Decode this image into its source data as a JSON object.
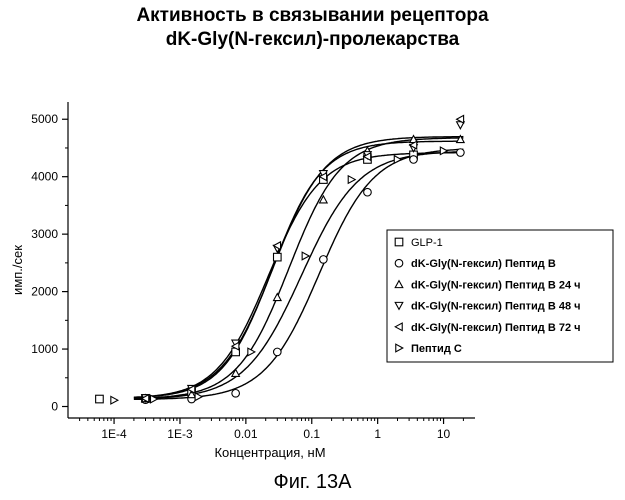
{
  "chart_data": {
    "type": "scatter",
    "title_lines": [
      "Активность в связывании рецептора",
      "dK-Gly(N-гексил)-пролекарства"
    ],
    "caption": "Фиг. 13А",
    "xlabel": "Концентрация, нМ",
    "ylabel": "имп./сек",
    "x_scale": "log",
    "xlim": [
      2e-05,
      30
    ],
    "ylim": [
      -200,
      5300
    ],
    "x_ticks": [
      {
        "value": 0.0001,
        "label": "1E-4"
      },
      {
        "value": 0.001,
        "label": "1E-3"
      },
      {
        "value": 0.01,
        "label": "0.01"
      },
      {
        "value": 0.1,
        "label": "0.1"
      },
      {
        "value": 1,
        "label": "1"
      },
      {
        "value": 10,
        "label": "10"
      }
    ],
    "y_ticks": [
      {
        "value": 0,
        "label": "0"
      },
      {
        "value": 1000,
        "label": "1000"
      },
      {
        "value": 2000,
        "label": "2000"
      },
      {
        "value": 3000,
        "label": "3000"
      },
      {
        "value": 4000,
        "label": "4000"
      },
      {
        "value": 5000,
        "label": "5000"
      }
    ],
    "grid": false,
    "legend_position": "right",
    "series": [
      {
        "name": "GLP-1",
        "marker": "square",
        "x": [
          6e-05,
          0.0003,
          0.0015,
          0.007,
          0.03,
          0.15,
          0.7,
          3.5
        ],
        "y": [
          130,
          140,
          250,
          950,
          2600,
          3950,
          4300,
          4380
        ],
        "fit": {
          "bottom": 130,
          "top": 4420,
          "ec50": 0.022,
          "hill": 1.1
        }
      },
      {
        "name": "dK-Gly(N-гексил) Пептид B",
        "marker": "circle",
        "x": [
          0.0003,
          0.0015,
          0.007,
          0.03,
          0.15,
          0.7,
          3.5,
          18
        ],
        "y": [
          120,
          130,
          230,
          950,
          2560,
          3730,
          4300,
          4420
        ],
        "fit": {
          "bottom": 120,
          "top": 4500,
          "ec50": 0.13,
          "hill": 1.05
        }
      },
      {
        "name": "dK-Gly(N-гексил) Пептид B 24 ч",
        "marker": "triangle-up",
        "x": [
          0.0003,
          0.0015,
          0.007,
          0.03,
          0.15,
          0.7,
          3.5,
          18
        ],
        "y": [
          140,
          210,
          580,
          1900,
          3600,
          4450,
          4650,
          4650
        ],
        "fit": {
          "bottom": 130,
          "top": 4680,
          "ec50": 0.045,
          "hill": 1.1
        }
      },
      {
        "name": "dK-Gly(N-гексил) Пептид B 48 ч",
        "marker": "triangle-down",
        "x": [
          0.0003,
          0.0015,
          0.007,
          0.03,
          0.15,
          0.7,
          3.5,
          18
        ],
        "y": [
          150,
          310,
          1100,
          2750,
          4050,
          4380,
          4500,
          4900
        ],
        "fit": {
          "bottom": 140,
          "top": 4620,
          "ec50": 0.025,
          "hill": 1.15
        }
      },
      {
        "name": "dK-Gly(N-гексил) Пептид B 72 ч",
        "marker": "triangle-left",
        "x": [
          0.0003,
          0.0015,
          0.007,
          0.03,
          0.15,
          0.7,
          3.5,
          18
        ],
        "y": [
          140,
          300,
          1050,
          2800,
          4000,
          4350,
          4550,
          5000
        ],
        "fit": {
          "bottom": 140,
          "top": 4700,
          "ec50": 0.026,
          "hill": 1.1
        }
      },
      {
        "name": "Пептид C",
        "marker": "triangle-right",
        "x": [
          0.0001,
          0.0004,
          0.0019,
          0.012,
          0.08,
          0.4,
          2,
          10
        ],
        "y": [
          110,
          130,
          170,
          950,
          2620,
          3950,
          4300,
          4450
        ],
        "fit": {
          "bottom": 120,
          "top": 4450,
          "ec50": 0.07,
          "hill": 1.0
        }
      }
    ]
  }
}
